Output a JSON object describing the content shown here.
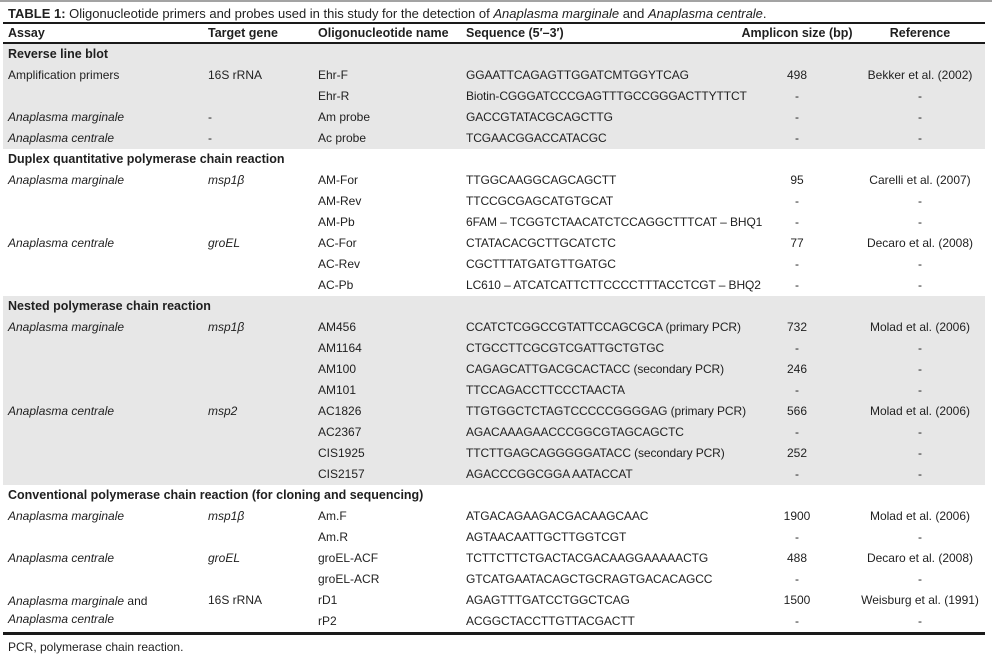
{
  "colors": {
    "section_shade": "#e7e7e7",
    "rule": "#1a1a1a",
    "text": "#1f1f1f",
    "page_top_edge": "#a3a3a3"
  },
  "page": {
    "title_segments": [
      {
        "t": "TABLE 1:",
        "b": true
      },
      {
        "t": " Oligonucleotide primers and probes used in this study for the detection of "
      },
      {
        "t": "Anaplasma marginale",
        "i": true
      },
      {
        "t": " and "
      },
      {
        "t": "Anaplasma centrale",
        "i": true
      },
      {
        "t": "."
      }
    ],
    "footnote": "PCR, polymerase chain reaction."
  },
  "table": {
    "columns": [
      {
        "key": "assay",
        "label": "Assay",
        "align": "left"
      },
      {
        "key": "target-gene",
        "label": "Target gene",
        "align": "left"
      },
      {
        "key": "oligo-name",
        "label": "Oligonucleotide name",
        "align": "left"
      },
      {
        "key": "sequence",
        "label": "Sequence (5′–3′)",
        "align": "left"
      },
      {
        "key": "amplicon-size",
        "label": "Amplicon size (bp)",
        "align": "center"
      },
      {
        "key": "reference",
        "label": "Reference",
        "align": "center"
      }
    ],
    "sections": [
      {
        "header": "Reverse line blot",
        "shaded": true,
        "rows": [
          {
            "assay": "Amplification primers",
            "gene": "16S rRNA",
            "oligo": "Ehr-F",
            "sequence": "GGAATTCAGAGTTGGATCMTGGYTCAG",
            "amplicon": "498",
            "reference": "Bekker et al. (2002)"
          },
          {
            "assay": "",
            "gene": "",
            "oligo": "Ehr-R",
            "sequence": "Biotin-CGGGATCCCGAGTTTGCCGGGACTTYTTCT",
            "amplicon": "-",
            "reference": "-"
          },
          {
            "assay": [
              {
                "t": "Anaplasma marginale",
                "i": true
              }
            ],
            "gene": "-",
            "oligo": "Am probe",
            "sequence": "GACCGTATACGCAGCTTG",
            "amplicon": "-",
            "reference": "-"
          },
          {
            "assay": [
              {
                "t": "Anaplasma centrale",
                "i": true
              }
            ],
            "gene": "-",
            "oligo": "Ac probe",
            "sequence": "TCGAACGGACCATACGC",
            "amplicon": "-",
            "reference": "-"
          }
        ]
      },
      {
        "header": "Duplex quantitative polymerase chain reaction",
        "shaded": false,
        "rows": [
          {
            "assay": [
              {
                "t": "Anaplasma marginale",
                "i": true
              }
            ],
            "gene": [
              {
                "t": "msp1β",
                "i": true
              }
            ],
            "oligo": "AM-For",
            "sequence": "TTGGCAAGGCAGCAGCTT",
            "amplicon": "95",
            "reference": "Carelli et al. (2007)"
          },
          {
            "assay": "",
            "gene": "",
            "oligo": "AM-Rev",
            "sequence": "TTCCGCGAGCATGTGCAT",
            "amplicon": "-",
            "reference": "-"
          },
          {
            "assay": "",
            "gene": "",
            "oligo": "AM-Pb",
            "sequence": "6FAM – TCGGTCTAACATCTCCAGGCTTTCAT – BHQ1",
            "amplicon": "-",
            "reference": "-"
          },
          {
            "assay": [
              {
                "t": "Anaplasma centrale",
                "i": true
              }
            ],
            "gene": [
              {
                "t": "groEL",
                "i": true
              }
            ],
            "oligo": "AC-For",
            "sequence": "CTATACACGCTTGCATCTC",
            "amplicon": "77",
            "reference": "Decaro et al. (2008)"
          },
          {
            "assay": "",
            "gene": "",
            "oligo": "AC-Rev",
            "sequence": "CGCTTTATGATGTTGATGC",
            "amplicon": "-",
            "reference": "-"
          },
          {
            "assay": "",
            "gene": "",
            "oligo": "AC-Pb",
            "sequence": "LC610 – ATCATCATTCTTCCCCTTTACCTCGT – BHQ2",
            "amplicon": "-",
            "reference": "-"
          }
        ]
      },
      {
        "header": "Nested polymerase chain reaction",
        "shaded": true,
        "rows": [
          {
            "assay": [
              {
                "t": "Anaplasma marginale",
                "i": true
              }
            ],
            "gene": [
              {
                "t": "msp1β",
                "i": true
              }
            ],
            "oligo": "AM456",
            "sequence": "CCATCTCGGCCGTATTCCAGCGCA (primary PCR)",
            "amplicon": "732",
            "reference": "Molad et al. (2006)"
          },
          {
            "assay": "",
            "gene": "",
            "oligo": "AM1164",
            "sequence": "CTGCCTTCGCGTCGATTGCTGTGC",
            "amplicon": "-",
            "reference": "-"
          },
          {
            "assay": "",
            "gene": "",
            "oligo": "AM100",
            "sequence": "CAGAGCATTGACGCACTACC (secondary PCR)",
            "amplicon": "246",
            "reference": "-"
          },
          {
            "assay": "",
            "gene": "",
            "oligo": "AM101",
            "sequence": "TTCCAGACCTTCCCTAACTA",
            "amplicon": "-",
            "reference": "-"
          },
          {
            "assay": [
              {
                "t": "Anaplasma centrale",
                "i": true
              }
            ],
            "gene": [
              {
                "t": "msp2",
                "i": true
              }
            ],
            "oligo": "AC1826",
            "sequence": "TTGTGGCTCTAGTCCCCCGGGGAG (primary PCR)",
            "amplicon": "566",
            "reference": "Molad et al. (2006)"
          },
          {
            "assay": "",
            "gene": "",
            "oligo": "AC2367",
            "sequence": "AGACAAAGAACCCGGCGTAGCAGCTC",
            "amplicon": "-",
            "reference": "-"
          },
          {
            "assay": "",
            "gene": "",
            "oligo": "CIS1925",
            "sequence": "TTCTTGAGCAGGGGGATACC (secondary PCR)",
            "amplicon": "252",
            "reference": "-"
          },
          {
            "assay": "",
            "gene": "",
            "oligo": "CIS2157",
            "sequence": "AGACCCGGCGGA AATACCAT",
            "amplicon": "-",
            "reference": "-"
          }
        ]
      },
      {
        "header": "Conventional polymerase chain reaction (for cloning and sequencing)",
        "shaded": false,
        "rows": [
          {
            "assay": [
              {
                "t": "Anaplasma marginale",
                "i": true
              }
            ],
            "gene": [
              {
                "t": "msp1β",
                "i": true
              }
            ],
            "oligo": "Am.F",
            "sequence": "ATGACAGAAGACGACAAGCAAC",
            "amplicon": "1900",
            "reference": "Molad et al. (2006)"
          },
          {
            "assay": "",
            "gene": "",
            "oligo": "Am.R",
            "sequence": "AGTAACAATTGCTTGGTCGT",
            "amplicon": "-",
            "reference": "-"
          },
          {
            "assay": [
              {
                "t": "Anaplasma centrale",
                "i": true
              }
            ],
            "gene": [
              {
                "t": "groEL",
                "i": true
              }
            ],
            "oligo": "groEL-ACF",
            "sequence": "TCTTCTTCTGACTACGACAAGGAAAAACTG",
            "amplicon": "488",
            "reference": "Decaro et al. (2008)"
          },
          {
            "assay": "",
            "gene": "",
            "oligo": "groEL-ACR",
            "sequence": "GTCATGAATACAGCTGCRAGTGACACAGCC",
            "amplicon": "-",
            "reference": "-"
          },
          {
            "assay": [
              {
                "t": "Anaplasma marginale",
                "i": true
              },
              {
                "t": " and"
              },
              {
                "br": true
              },
              {
                "t": "Anaplasma centrale",
                "i": true
              }
            ],
            "assay_two_line": true,
            "gene": "16S rRNA",
            "oligo": "rD1",
            "sequence": "AGAGTTTGATCCTGGCTCAG",
            "amplicon": "1500",
            "reference": "Weisburg et al. (1991)"
          },
          {
            "assay": "",
            "gene": "",
            "oligo": "rP2",
            "sequence": "ACGGCTACCTTGTTACGACTT",
            "amplicon": "-",
            "reference": "-"
          }
        ]
      }
    ]
  }
}
